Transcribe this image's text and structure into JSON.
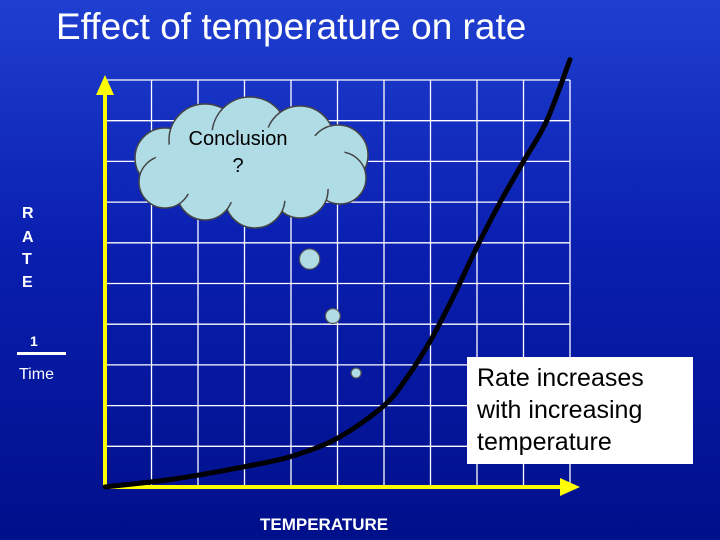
{
  "title": "Effect of temperature on rate",
  "chart_data": {
    "type": "line",
    "title": "Effect of temperature on rate",
    "xlabel": "TEMPERATURE",
    "ylabel": [
      "R",
      "A",
      "T",
      "E"
    ],
    "rate_unit": {
      "numerator": "1",
      "denominator": "Time"
    },
    "xlim": [
      0,
      10
    ],
    "ylim": [
      0,
      10
    ],
    "grid": true,
    "series": [
      {
        "name": "rate",
        "x": [
          0,
          1.5,
          3,
          4,
          5,
          6,
          6.5,
          7,
          7.5,
          8,
          8.5,
          9,
          9.5,
          10
        ],
        "y": [
          0,
          0.2,
          0.5,
          0.75,
          1.2,
          2.0,
          2.7,
          3.6,
          4.7,
          5.9,
          7.0,
          8.0,
          9.0,
          10.5
        ]
      }
    ],
    "bubbles": [
      {
        "x": 5.4,
        "y": 2.8,
        "size": 0.18
      },
      {
        "x": 4.9,
        "y": 4.2,
        "size": 0.4
      },
      {
        "x": 4.4,
        "y": 5.6,
        "size": 0.65
      }
    ]
  },
  "thought_bubble": {
    "line1": "Conclusion",
    "line2": "?"
  },
  "annotation": {
    "line1": "Rate increases",
    "line2": "with increasing",
    "line3": "temperature"
  },
  "colors": {
    "background": "#0a1fb0",
    "axis": "#ffff00",
    "grid": "#ffffff",
    "curve": "#000000",
    "cloud": "#b0dce6",
    "bubble": "#b0dce6"
  }
}
